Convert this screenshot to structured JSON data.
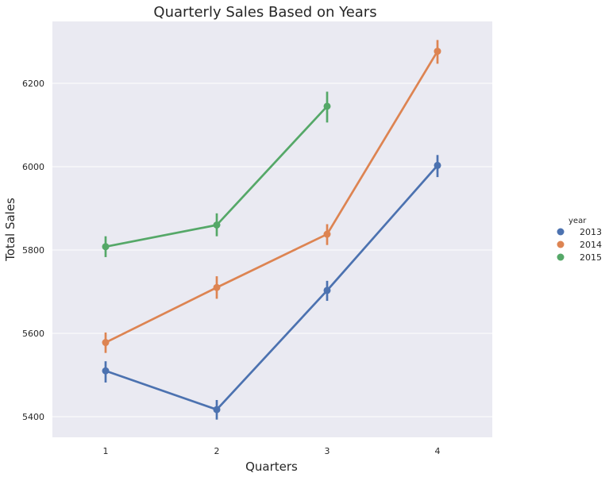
{
  "chart_data": {
    "type": "line",
    "title": "Quarterly Sales Based on Years",
    "xlabel": "Quarters",
    "ylabel": "Total Sales",
    "categories": [
      "1",
      "2",
      "3",
      "4"
    ],
    "yticks": [
      5400,
      5600,
      5800,
      6000,
      6200
    ],
    "ylim": [
      5350,
      6320
    ],
    "grid": true,
    "legend": {
      "title": "year",
      "placement": "right"
    },
    "series": [
      {
        "name": "2013",
        "color": "#4c72b0",
        "values": [
          5510,
          5417,
          5703,
          6003
        ],
        "err_low": [
          5482,
          5393,
          5678,
          5975
        ],
        "err_high": [
          5533,
          5440,
          5726,
          6028
        ]
      },
      {
        "name": "2014",
        "color": "#dd8452",
        "values": [
          5578,
          5710,
          5838,
          6277
        ],
        "err_low": [
          5553,
          5683,
          5812,
          6247
        ],
        "err_high": [
          5602,
          5737,
          5862,
          6304
        ]
      },
      {
        "name": "2015",
        "color": "#55a868",
        "values": [
          5808,
          5860,
          6145,
          null
        ],
        "err_low": [
          5783,
          5833,
          6106,
          null
        ],
        "err_high": [
          5833,
          5888,
          6180,
          null
        ]
      }
    ]
  }
}
